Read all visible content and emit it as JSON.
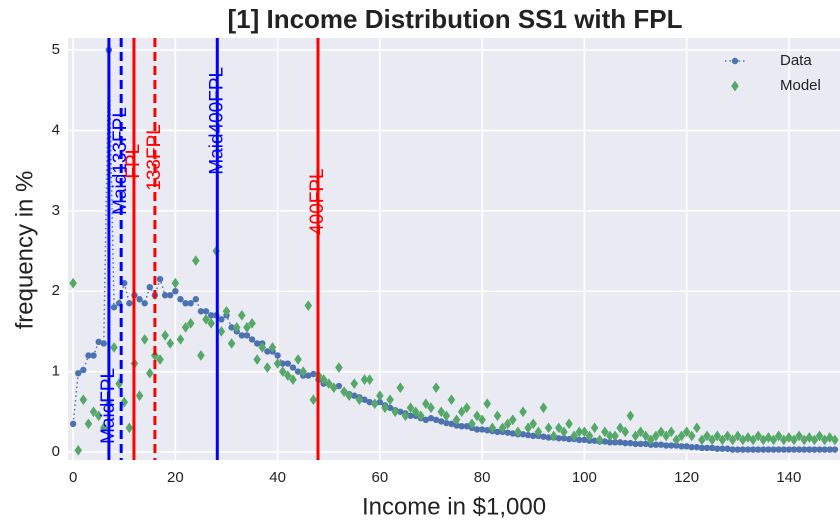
{
  "chart_data": {
    "type": "line_scatter",
    "title": "[1] Income Distribution SS1 with FPL",
    "x_label": "Income in $1,000",
    "y_label": "frequency in %",
    "xlim": [
      -1,
      150
    ],
    "ylim": [
      -0.1,
      5.15
    ],
    "xticks": [
      0,
      20,
      40,
      60,
      80,
      100,
      120,
      140
    ],
    "yticks": [
      0,
      1,
      2,
      3,
      4,
      5
    ],
    "grid": true,
    "legend": "upper right",
    "x": [
      0,
      1,
      2,
      3,
      4,
      5,
      6,
      7,
      8,
      9,
      10,
      11,
      12,
      13,
      14,
      15,
      16,
      17,
      18,
      19,
      20,
      21,
      22,
      23,
      24,
      25,
      26,
      27,
      28,
      29,
      30,
      31,
      32,
      33,
      34,
      35,
      36,
      37,
      38,
      39,
      40,
      41,
      42,
      43,
      44,
      45,
      46,
      47,
      48,
      49,
      50,
      51,
      52,
      53,
      54,
      55,
      56,
      57,
      58,
      59,
      60,
      61,
      62,
      63,
      64,
      65,
      66,
      67,
      68,
      69,
      70,
      71,
      72,
      73,
      74,
      75,
      76,
      77,
      78,
      79,
      80,
      81,
      82,
      83,
      84,
      85,
      86,
      87,
      88,
      89,
      90,
      91,
      92,
      93,
      94,
      95,
      96,
      97,
      98,
      99,
      100,
      101,
      102,
      103,
      104,
      105,
      106,
      107,
      108,
      109,
      110,
      111,
      112,
      113,
      114,
      115,
      116,
      117,
      118,
      119,
      120,
      121,
      122,
      123,
      124,
      125,
      126,
      127,
      128,
      129,
      130,
      131,
      132,
      133,
      134,
      135,
      136,
      137,
      138,
      139,
      140,
      141,
      142,
      143,
      144,
      145,
      146,
      147,
      148,
      149
    ],
    "series": [
      {
        "name": "Data",
        "color": "#4c72b0",
        "style": "dotted-marker",
        "values": [
          0.35,
          0.98,
          1.02,
          1.2,
          1.2,
          1.37,
          1.35,
          5.0,
          1.8,
          1.85,
          2.1,
          1.85,
          1.95,
          1.9,
          1.85,
          2.05,
          1.95,
          2.15,
          1.95,
          1.95,
          2.0,
          1.9,
          1.85,
          1.85,
          1.9,
          1.75,
          1.75,
          1.7,
          1.7,
          1.65,
          1.7,
          1.55,
          1.5,
          1.45,
          1.45,
          1.4,
          1.35,
          1.35,
          1.25,
          1.25,
          1.2,
          1.1,
          1.1,
          1.05,
          1.0,
          0.95,
          0.95,
          0.97,
          0.9,
          0.85,
          0.85,
          0.8,
          0.82,
          0.75,
          0.72,
          0.7,
          0.68,
          0.65,
          0.62,
          0.6,
          0.62,
          0.58,
          0.55,
          0.52,
          0.5,
          0.48,
          0.45,
          0.45,
          0.42,
          0.4,
          0.42,
          0.4,
          0.38,
          0.36,
          0.35,
          0.33,
          0.32,
          0.32,
          0.3,
          0.28,
          0.28,
          0.27,
          0.26,
          0.25,
          0.25,
          0.24,
          0.23,
          0.22,
          0.22,
          0.21,
          0.2,
          0.2,
          0.19,
          0.18,
          0.18,
          0.17,
          0.17,
          0.16,
          0.16,
          0.15,
          0.15,
          0.14,
          0.14,
          0.13,
          0.13,
          0.12,
          0.12,
          0.12,
          0.11,
          0.11,
          0.1,
          0.1,
          0.1,
          0.09,
          0.09,
          0.09,
          0.08,
          0.08,
          0.08,
          0.07,
          0.07,
          0.06,
          0.06,
          0.05,
          0.05,
          0.05,
          0.04,
          0.04,
          0.04,
          0.03,
          0.03,
          0.03,
          0.03,
          0.03,
          0.03,
          0.03,
          0.03,
          0.03,
          0.03,
          0.03,
          0.03,
          0.03,
          0.03,
          0.03,
          0.03,
          0.03,
          0.03,
          0.03,
          0.03,
          0.03
        ]
      },
      {
        "name": "Model",
        "color": "#55a868",
        "style": "diamond",
        "values": [
          2.1,
          0.02,
          0.65,
          0.35,
          0.5,
          0.45,
          0.3,
          0.6,
          1.3,
          0.85,
          0.62,
          0.3,
          1.1,
          0.7,
          1.4,
          0.98,
          1.2,
          1.15,
          1.45,
          1.35,
          2.1,
          1.4,
          1.55,
          1.6,
          2.38,
          1.2,
          1.65,
          1.6,
          2.5,
          1.5,
          1.75,
          1.35,
          1.55,
          1.7,
          1.55,
          1.6,
          1.15,
          1.3,
          1.05,
          1.3,
          1.1,
          1.0,
          0.95,
          0.9,
          1.15,
          1.0,
          1.82,
          0.65,
          0.95,
          0.9,
          0.85,
          0.8,
          1.05,
          0.75,
          0.7,
          0.85,
          0.65,
          0.9,
          0.9,
          0.6,
          0.7,
          0.55,
          0.65,
          0.5,
          0.8,
          0.45,
          0.55,
          0.5,
          0.45,
          0.6,
          0.55,
          0.8,
          0.5,
          0.45,
          0.65,
          0.4,
          0.5,
          0.55,
          0.35,
          0.45,
          0.4,
          0.6,
          0.3,
          0.45,
          0.3,
          0.35,
          0.4,
          0.25,
          0.5,
          0.3,
          0.35,
          0.25,
          0.55,
          0.3,
          0.2,
          0.3,
          0.25,
          0.35,
          0.2,
          0.25,
          0.25,
          0.2,
          0.3,
          0.15,
          0.25,
          0.2,
          0.2,
          0.3,
          0.25,
          0.45,
          0.2,
          0.25,
          0.2,
          0.15,
          0.2,
          0.25,
          0.2,
          0.25,
          0.15,
          0.2,
          0.25,
          0.2,
          0.3,
          0.15,
          0.2,
          0.15,
          0.2,
          0.15,
          0.2,
          0.15,
          0.2,
          0.15,
          0.18,
          0.15,
          0.2,
          0.15,
          0.18,
          0.15,
          0.2,
          0.15,
          0.18,
          0.15,
          0.2,
          0.15,
          0.18,
          0.15,
          0.2,
          0.15,
          0.18,
          0.15
        ]
      }
    ],
    "vlines": [
      {
        "label": "MaidFPL",
        "x": 7,
        "color": "#0000ff",
        "dash": false,
        "label_y": 0.1
      },
      {
        "label": "Maid133FPL",
        "x": 9.4,
        "color": "#0000ff",
        "dash": true,
        "label_y": 2.95
      },
      {
        "label": "FPL",
        "x": 11.9,
        "color": "#ff0000",
        "dash": false,
        "label_y": 3.4
      },
      {
        "label": "133FPL",
        "x": 16,
        "color": "#ff0000",
        "dash": true,
        "label_y": 3.25
      },
      {
        "label": "Maid400FPL",
        "x": 28.2,
        "color": "#0000ff",
        "dash": false,
        "label_y": 3.45
      },
      {
        "label": "400FPL",
        "x": 47.9,
        "color": "#ff0000",
        "dash": false,
        "label_y": 2.7
      }
    ]
  }
}
